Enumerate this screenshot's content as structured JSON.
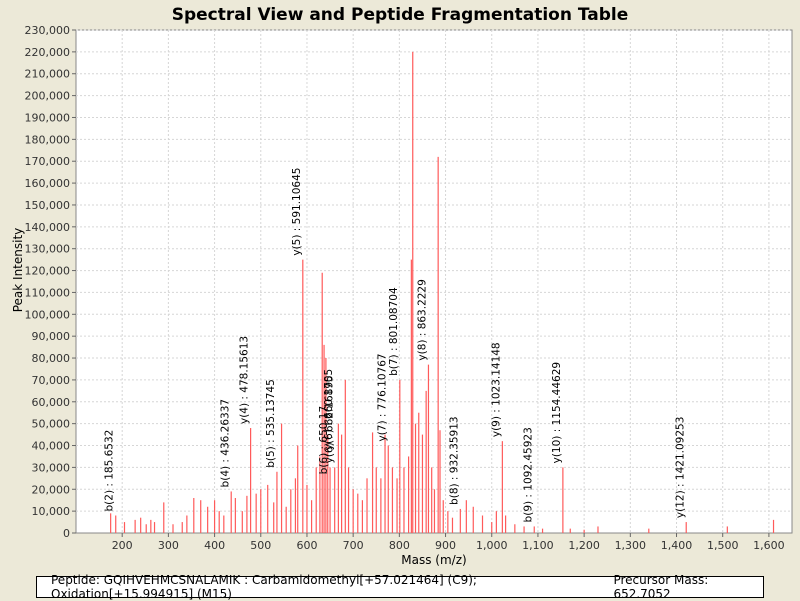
{
  "chart_data": {
    "type": "bar",
    "title": "Spectral View and Peptide Fragmentation Table",
    "xlabel": "Mass (m/z)",
    "ylabel": "Peak Intensity",
    "xlim": [
      100,
      1650
    ],
    "ylim": [
      0,
      230000
    ],
    "x_ticks": [
      "200",
      "300",
      "400",
      "500",
      "600",
      "700",
      "800",
      "900",
      "1,000",
      "1,100",
      "1,200",
      "1,300",
      "1,400",
      "1,500",
      "1,600"
    ],
    "y_ticks": [
      "0",
      "10,000",
      "20,000",
      "30,000",
      "40,000",
      "50,000",
      "60,000",
      "70,000",
      "80,000",
      "90,000",
      "100,000",
      "110,000",
      "120,000",
      "130,000",
      "140,000",
      "150,000",
      "160,000",
      "170,000",
      "180,000",
      "190,000",
      "200,000",
      "210,000",
      "220,000",
      "230,000"
    ],
    "series": [
      {
        "name": "peaks",
        "color": "#ff5a5a",
        "values": [
          [
            175,
            9000
          ],
          [
            186,
            8000
          ],
          [
            205,
            5000
          ],
          [
            228,
            6000
          ],
          [
            240,
            7000
          ],
          [
            252,
            4000
          ],
          [
            262,
            6000
          ],
          [
            270,
            5000
          ],
          [
            290,
            14000
          ],
          [
            310,
            4000
          ],
          [
            330,
            5000
          ],
          [
            340,
            8000
          ],
          [
            355,
            16000
          ],
          [
            370,
            15000
          ],
          [
            385,
            12000
          ],
          [
            400,
            15000
          ],
          [
            410,
            10000
          ],
          [
            420,
            8000
          ],
          [
            436,
            19000
          ],
          [
            445,
            16000
          ],
          [
            460,
            10000
          ],
          [
            470,
            17000
          ],
          [
            478,
            48000
          ],
          [
            490,
            18000
          ],
          [
            500,
            20000
          ],
          [
            515,
            22000
          ],
          [
            528,
            14000
          ],
          [
            535,
            28000
          ],
          [
            545,
            50000
          ],
          [
            555,
            12000
          ],
          [
            565,
            20000
          ],
          [
            575,
            25000
          ],
          [
            580,
            40000
          ],
          [
            591,
            125000
          ],
          [
            600,
            22000
          ],
          [
            610,
            15000
          ],
          [
            620,
            30000
          ],
          [
            628,
            35000
          ],
          [
            633,
            119000
          ],
          [
            637,
            86000
          ],
          [
            641,
            80000
          ],
          [
            645,
            45000
          ],
          [
            650,
            30000
          ],
          [
            660,
            30000
          ],
          [
            668,
            50000
          ],
          [
            675,
            45000
          ],
          [
            683,
            70000
          ],
          [
            690,
            30000
          ],
          [
            700,
            20000
          ],
          [
            710,
            18000
          ],
          [
            720,
            15000
          ],
          [
            730,
            25000
          ],
          [
            742,
            46000
          ],
          [
            750,
            30000
          ],
          [
            760,
            25000
          ],
          [
            769,
            45000
          ],
          [
            776,
            40000
          ],
          [
            785,
            30000
          ],
          [
            795,
            25000
          ],
          [
            801,
            70000
          ],
          [
            810,
            30000
          ],
          [
            820,
            35000
          ],
          [
            826,
            125000
          ],
          [
            829,
            220000
          ],
          [
            835,
            50000
          ],
          [
            842,
            55000
          ],
          [
            850,
            45000
          ],
          [
            858,
            65000
          ],
          [
            863,
            77000
          ],
          [
            870,
            30000
          ],
          [
            876,
            20000
          ],
          [
            884,
            172000
          ],
          [
            888,
            47000
          ],
          [
            895,
            15000
          ],
          [
            905,
            10000
          ],
          [
            915,
            7000
          ],
          [
            932,
            11000
          ],
          [
            945,
            15000
          ],
          [
            960,
            12000
          ],
          [
            980,
            8000
          ],
          [
            1000,
            5000
          ],
          [
            1010,
            10000
          ],
          [
            1023,
            42000
          ],
          [
            1030,
            8000
          ],
          [
            1050,
            4000
          ],
          [
            1070,
            3000
          ],
          [
            1092,
            3000
          ],
          [
            1110,
            2000
          ],
          [
            1154,
            30000
          ],
          [
            1170,
            2000
          ],
          [
            1200,
            1500
          ],
          [
            1230,
            3000
          ],
          [
            1340,
            2000
          ],
          [
            1421,
            5000
          ],
          [
            1510,
            3000
          ],
          [
            1610,
            6000
          ]
        ]
      }
    ],
    "annotations": [
      {
        "label": "b(2) : 185.6532",
        "x": 185.6532,
        "y": 8000
      },
      {
        "label": "b(4) : 436.26337",
        "x": 436.26337,
        "y": 19000
      },
      {
        "label": "y(4) : 478.15613",
        "x": 478.15613,
        "y": 48000
      },
      {
        "label": "b(5) : 535.13745",
        "x": 535.13745,
        "y": 28000
      },
      {
        "label": "y(5) : 591.10645",
        "x": 591.10645,
        "y": 125000
      },
      {
        "label": "b(6) : 650.17",
        "x": 650.17,
        "y": 25000
      },
      {
        "label": "y(6) : 662.16895",
        "x": 662.16895,
        "y": 30000
      },
      {
        "label": "y(6) : 660.1705",
        "x": 660.1705,
        "y": 36000
      },
      {
        "label": "y(7) : 776.10767",
        "x": 776.10767,
        "y": 40000
      },
      {
        "label": "b(7) : 801.08704",
        "x": 801.08704,
        "y": 70000
      },
      {
        "label": "y(8) : 863.2229",
        "x": 863.2229,
        "y": 77000
      },
      {
        "label": "b(8) : 932.35913",
        "x": 932.35913,
        "y": 11000
      },
      {
        "label": "y(9) : 1023.14148",
        "x": 1023.14148,
        "y": 42000
      },
      {
        "label": "b(9) : 1092.45923",
        "x": 1092.45923,
        "y": 3000
      },
      {
        "label": "y(10) : 1154.44629",
        "x": 1154.44629,
        "y": 30000
      },
      {
        "label": "y(12) : 1421.09253",
        "x": 1421.09253,
        "y": 5000
      }
    ]
  },
  "footer": {
    "peptide": "Peptide: GQIHVEHMCSNALAMIK : Carbamidomethyl[+57.021464] (C9); Oxidation[+15.994915] (M15)",
    "precursor": "Precursor Mass: 652.7052"
  }
}
